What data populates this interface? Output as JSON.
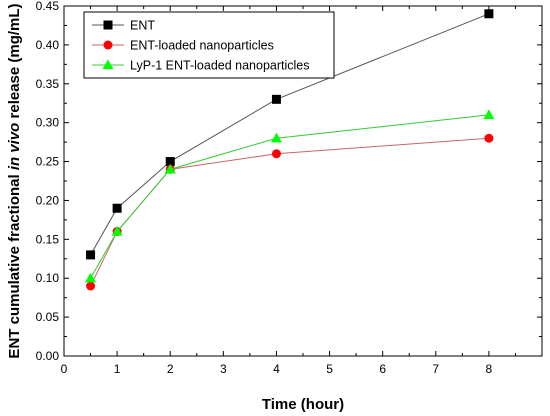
{
  "chart_data": {
    "type": "line",
    "title": "",
    "xlabel": "Time (hour)",
    "ylabel_parts": [
      "ENT cumulative fractional ",
      "in vivo",
      " release (mg/mL)"
    ],
    "xlim": [
      0,
      9
    ],
    "ylim": [
      0,
      0.45
    ],
    "x_ticks": [
      "0",
      "1",
      "2",
      "3",
      "4",
      "5",
      "6",
      "7",
      "8"
    ],
    "y_ticks": [
      "0.00",
      "0.05",
      "0.10",
      "0.15",
      "0.20",
      "0.25",
      "0.30",
      "0.35",
      "0.40",
      "0.45"
    ],
    "grid": false,
    "legend_position": "top-left",
    "x": [
      0.5,
      1,
      2,
      4,
      8
    ],
    "series": [
      {
        "name": "ENT",
        "values": [
          0.13,
          0.19,
          0.25,
          0.33,
          0.44
        ],
        "marker": "square",
        "marker_color": "#000000",
        "line_color": "#555555"
      },
      {
        "name": "ENT-loaded nanoparticles",
        "values": [
          0.09,
          0.16,
          0.24,
          0.26,
          0.28
        ],
        "marker": "circle",
        "marker_color": "#ff0000",
        "line_color": "#cc6666"
      },
      {
        "name": "LyP-1 ENT-loaded nanoparticles",
        "values": [
          0.1,
          0.16,
          0.24,
          0.28,
          0.31
        ],
        "marker": "triangle",
        "marker_color": "#00ff00",
        "line_color": "#33cc33"
      }
    ]
  }
}
